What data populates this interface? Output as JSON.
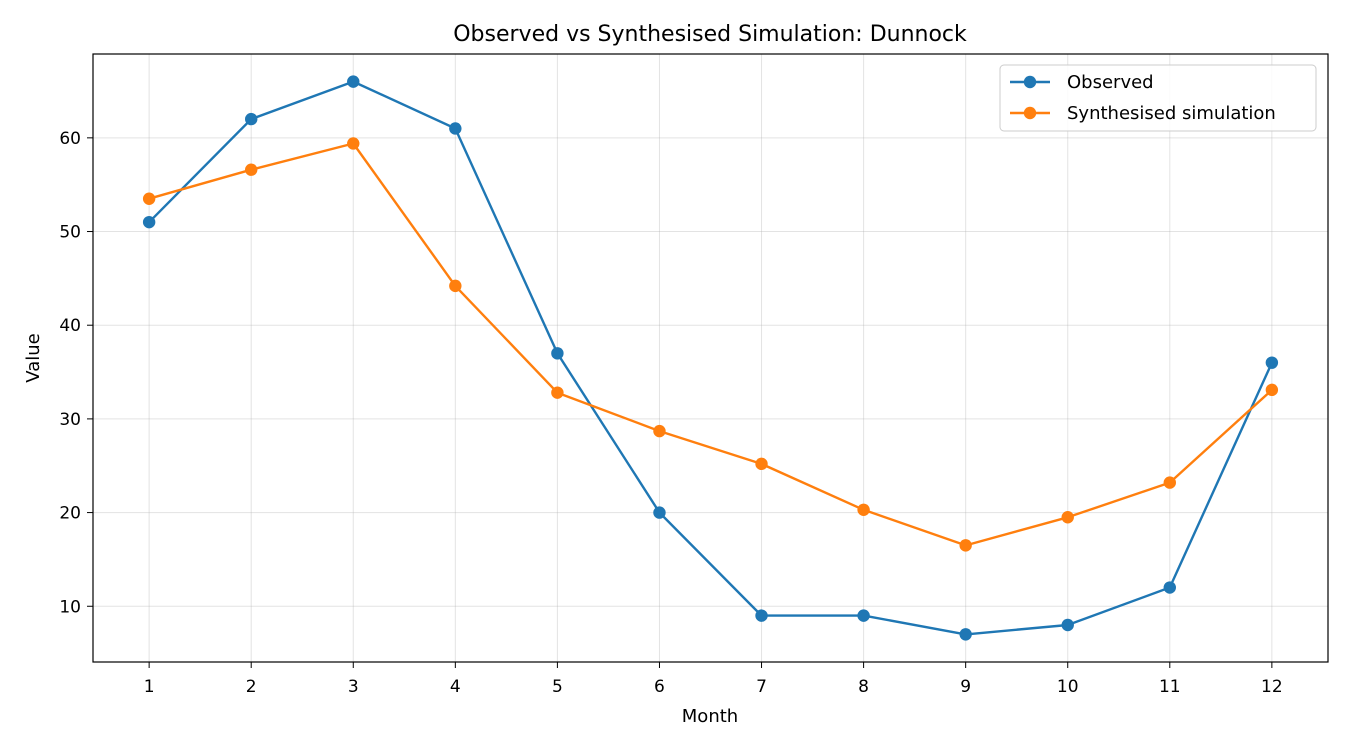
{
  "chart_data": {
    "type": "line",
    "title": "Observed vs Synthesised Simulation: Dunnock",
    "xlabel": "Month",
    "ylabel": "Value",
    "x": [
      1,
      2,
      3,
      4,
      5,
      6,
      7,
      8,
      9,
      10,
      11,
      12
    ],
    "xlim": [
      0.45,
      12.55
    ],
    "ylim": [
      4.05,
      68.95
    ],
    "yticks": [
      10,
      20,
      30,
      40,
      50,
      60
    ],
    "grid": true,
    "legend_position": "top-right",
    "series": [
      {
        "name": "Observed",
        "color": "#1f77b4",
        "values": [
          51,
          62,
          66,
          61,
          37,
          20,
          9,
          9,
          7,
          8,
          12,
          36
        ]
      },
      {
        "name": "Synthesised simulation",
        "color": "#ff7f0e",
        "values": [
          53.5,
          56.6,
          59.4,
          44.2,
          32.8,
          28.7,
          25.2,
          20.3,
          16.5,
          19.5,
          23.2,
          33.1
        ]
      }
    ]
  }
}
